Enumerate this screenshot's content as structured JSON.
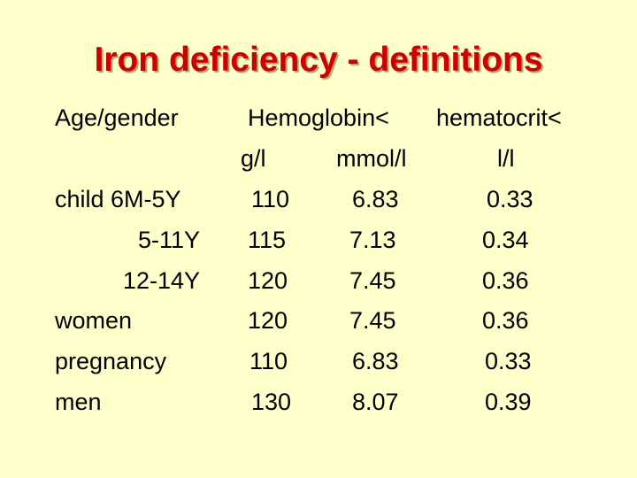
{
  "title": "Iron deficiency - definitions",
  "headers": {
    "age_gender": "Age/gender",
    "hemoglobin": "Hemoglobin<",
    "hematocrit": "hematocrit<",
    "unit_gl": "g/l",
    "unit_mmol": "mmol/l",
    "unit_ll": "l/l"
  },
  "rows": [
    {
      "label": "child 6M-5Y",
      "hb_gl": "110",
      "hb_mmol": "6.83",
      "hct": "0.33"
    },
    {
      "label": "5-11Y",
      "hb_gl": "115",
      "hb_mmol": "7.13",
      "hct": "0.34"
    },
    {
      "label": "12-14Y",
      "hb_gl": "120",
      "hb_mmol": "7.45",
      "hct": "0.36"
    },
    {
      "label": "women",
      "hb_gl": "120",
      "hb_mmol": "7.45",
      "hct": "0.36"
    },
    {
      "label": "pregnancy",
      "hb_gl": "110",
      "hb_mmol": "6.83",
      "hct": "0.33"
    },
    {
      "label": "men",
      "hb_gl": "130",
      "hb_mmol": "8.07",
      "hct": "0.39"
    }
  ]
}
